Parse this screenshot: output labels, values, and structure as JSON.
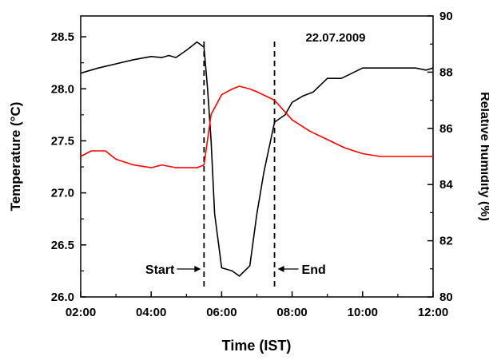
{
  "chart_data": {
    "type": "line",
    "annotation_date": "22.07.2009",
    "xlabel": "Time (IST)",
    "ylabel_left": "Temperature (°C)",
    "ylabel_right": "Relative humidity (%)",
    "x_ticks": [
      "02:00",
      "04:00",
      "06:00",
      "08:00",
      "10:00",
      "12:00"
    ],
    "xlim": [
      2,
      12
    ],
    "ylim_left": [
      26.0,
      28.7
    ],
    "yticks_left": [
      "26.0",
      "26.5",
      "27.0",
      "27.5",
      "28.0",
      "28.5"
    ],
    "ylim_right": [
      80,
      90
    ],
    "yticks_right": [
      "80",
      "82",
      "84",
      "86",
      "88",
      "90"
    ],
    "series": [
      {
        "axis": "left",
        "color": "#000000",
        "x": [
          2.0,
          2.5,
          3.0,
          3.5,
          4.0,
          4.3,
          4.5,
          4.7,
          5.0,
          5.3,
          5.5,
          5.6,
          5.7,
          5.8,
          6.0,
          6.3,
          6.5,
          6.8,
          7.0,
          7.2,
          7.5,
          7.8,
          8.0,
          8.3,
          8.6,
          9.0,
          9.4,
          10.0,
          10.5,
          11.0,
          11.5,
          11.8,
          12.0
        ],
        "y": [
          28.15,
          28.2,
          28.24,
          28.28,
          28.31,
          28.3,
          28.32,
          28.3,
          28.37,
          28.45,
          28.4,
          28.0,
          27.5,
          26.8,
          26.28,
          26.25,
          26.2,
          26.3,
          26.8,
          27.2,
          27.68,
          27.75,
          27.87,
          27.93,
          27.97,
          28.1,
          28.1,
          28.2,
          28.2,
          28.2,
          28.2,
          28.18,
          28.2
        ]
      },
      {
        "axis": "right",
        "color": "#ff0000",
        "x": [
          2.0,
          2.3,
          2.7,
          3.0,
          3.5,
          4.0,
          4.3,
          4.7,
          5.0,
          5.3,
          5.5,
          5.7,
          6.0,
          6.3,
          6.5,
          6.8,
          7.0,
          7.5,
          8.0,
          8.5,
          9.0,
          9.5,
          10.0,
          10.5,
          11.0,
          11.3,
          11.5,
          12.0
        ],
        "y": [
          85.0,
          85.2,
          85.2,
          84.9,
          84.7,
          84.6,
          84.7,
          84.6,
          84.6,
          84.6,
          84.7,
          86.5,
          87.2,
          87.4,
          87.5,
          87.4,
          87.3,
          87.0,
          86.3,
          85.9,
          85.6,
          85.3,
          85.1,
          85.0,
          85.0,
          85.0,
          85.0,
          85.0
        ]
      }
    ],
    "markers": [
      {
        "label": "Start",
        "x": 5.5
      },
      {
        "label": "End",
        "x": 7.5
      }
    ]
  }
}
